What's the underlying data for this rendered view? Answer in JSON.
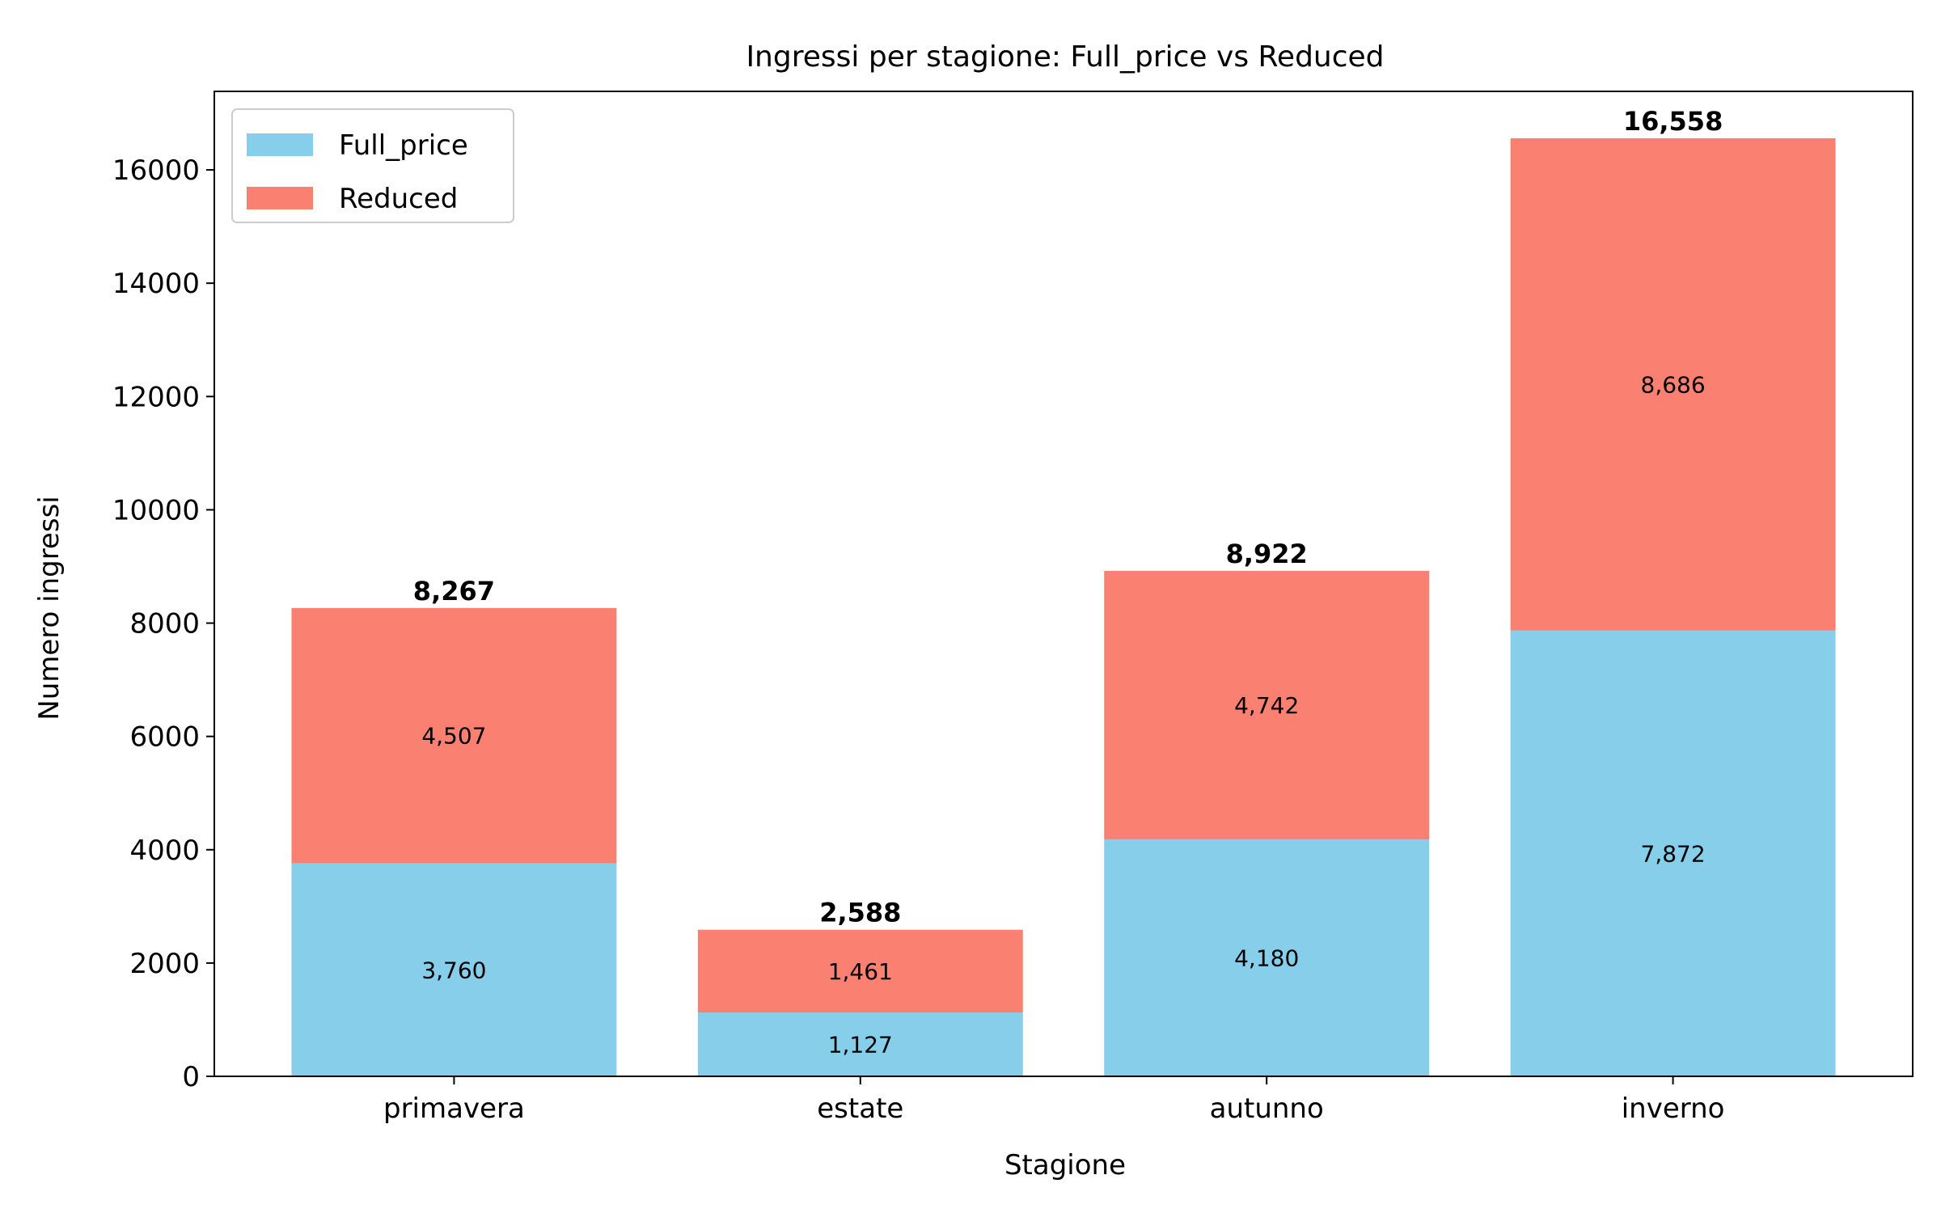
{
  "chart_data": {
    "type": "bar",
    "stacked": true,
    "title": "Ingressi per stagione: Full_price vs Reduced",
    "xlabel": "Stagione",
    "ylabel": "Numero ingressi",
    "categories": [
      "primavera",
      "estate",
      "autunno",
      "inverno"
    ],
    "series": [
      {
        "name": "Full_price",
        "values": [
          3760,
          1127,
          4180,
          7872
        ],
        "color": "#87CEEB"
      },
      {
        "name": "Reduced",
        "values": [
          4507,
          1461,
          4742,
          8686
        ],
        "color": "#FA8072"
      }
    ],
    "segment_labels": [
      [
        "3,760",
        "1,127",
        "4,180",
        "7,872"
      ],
      [
        "4,507",
        "1,461",
        "4,742",
        "8,686"
      ]
    ],
    "total_labels": [
      "8,267",
      "2,588",
      "8,922",
      "16,558"
    ],
    "yticks": [
      0,
      2000,
      4000,
      6000,
      8000,
      10000,
      12000,
      14000,
      16000
    ],
    "ytick_labels": [
      "0",
      "2000",
      "4000",
      "6000",
      "8000",
      "10000",
      "12000",
      "14000",
      "16000"
    ],
    "ylim": [
      0,
      17385.9
    ],
    "grid": false,
    "legend_position": "top-left"
  }
}
